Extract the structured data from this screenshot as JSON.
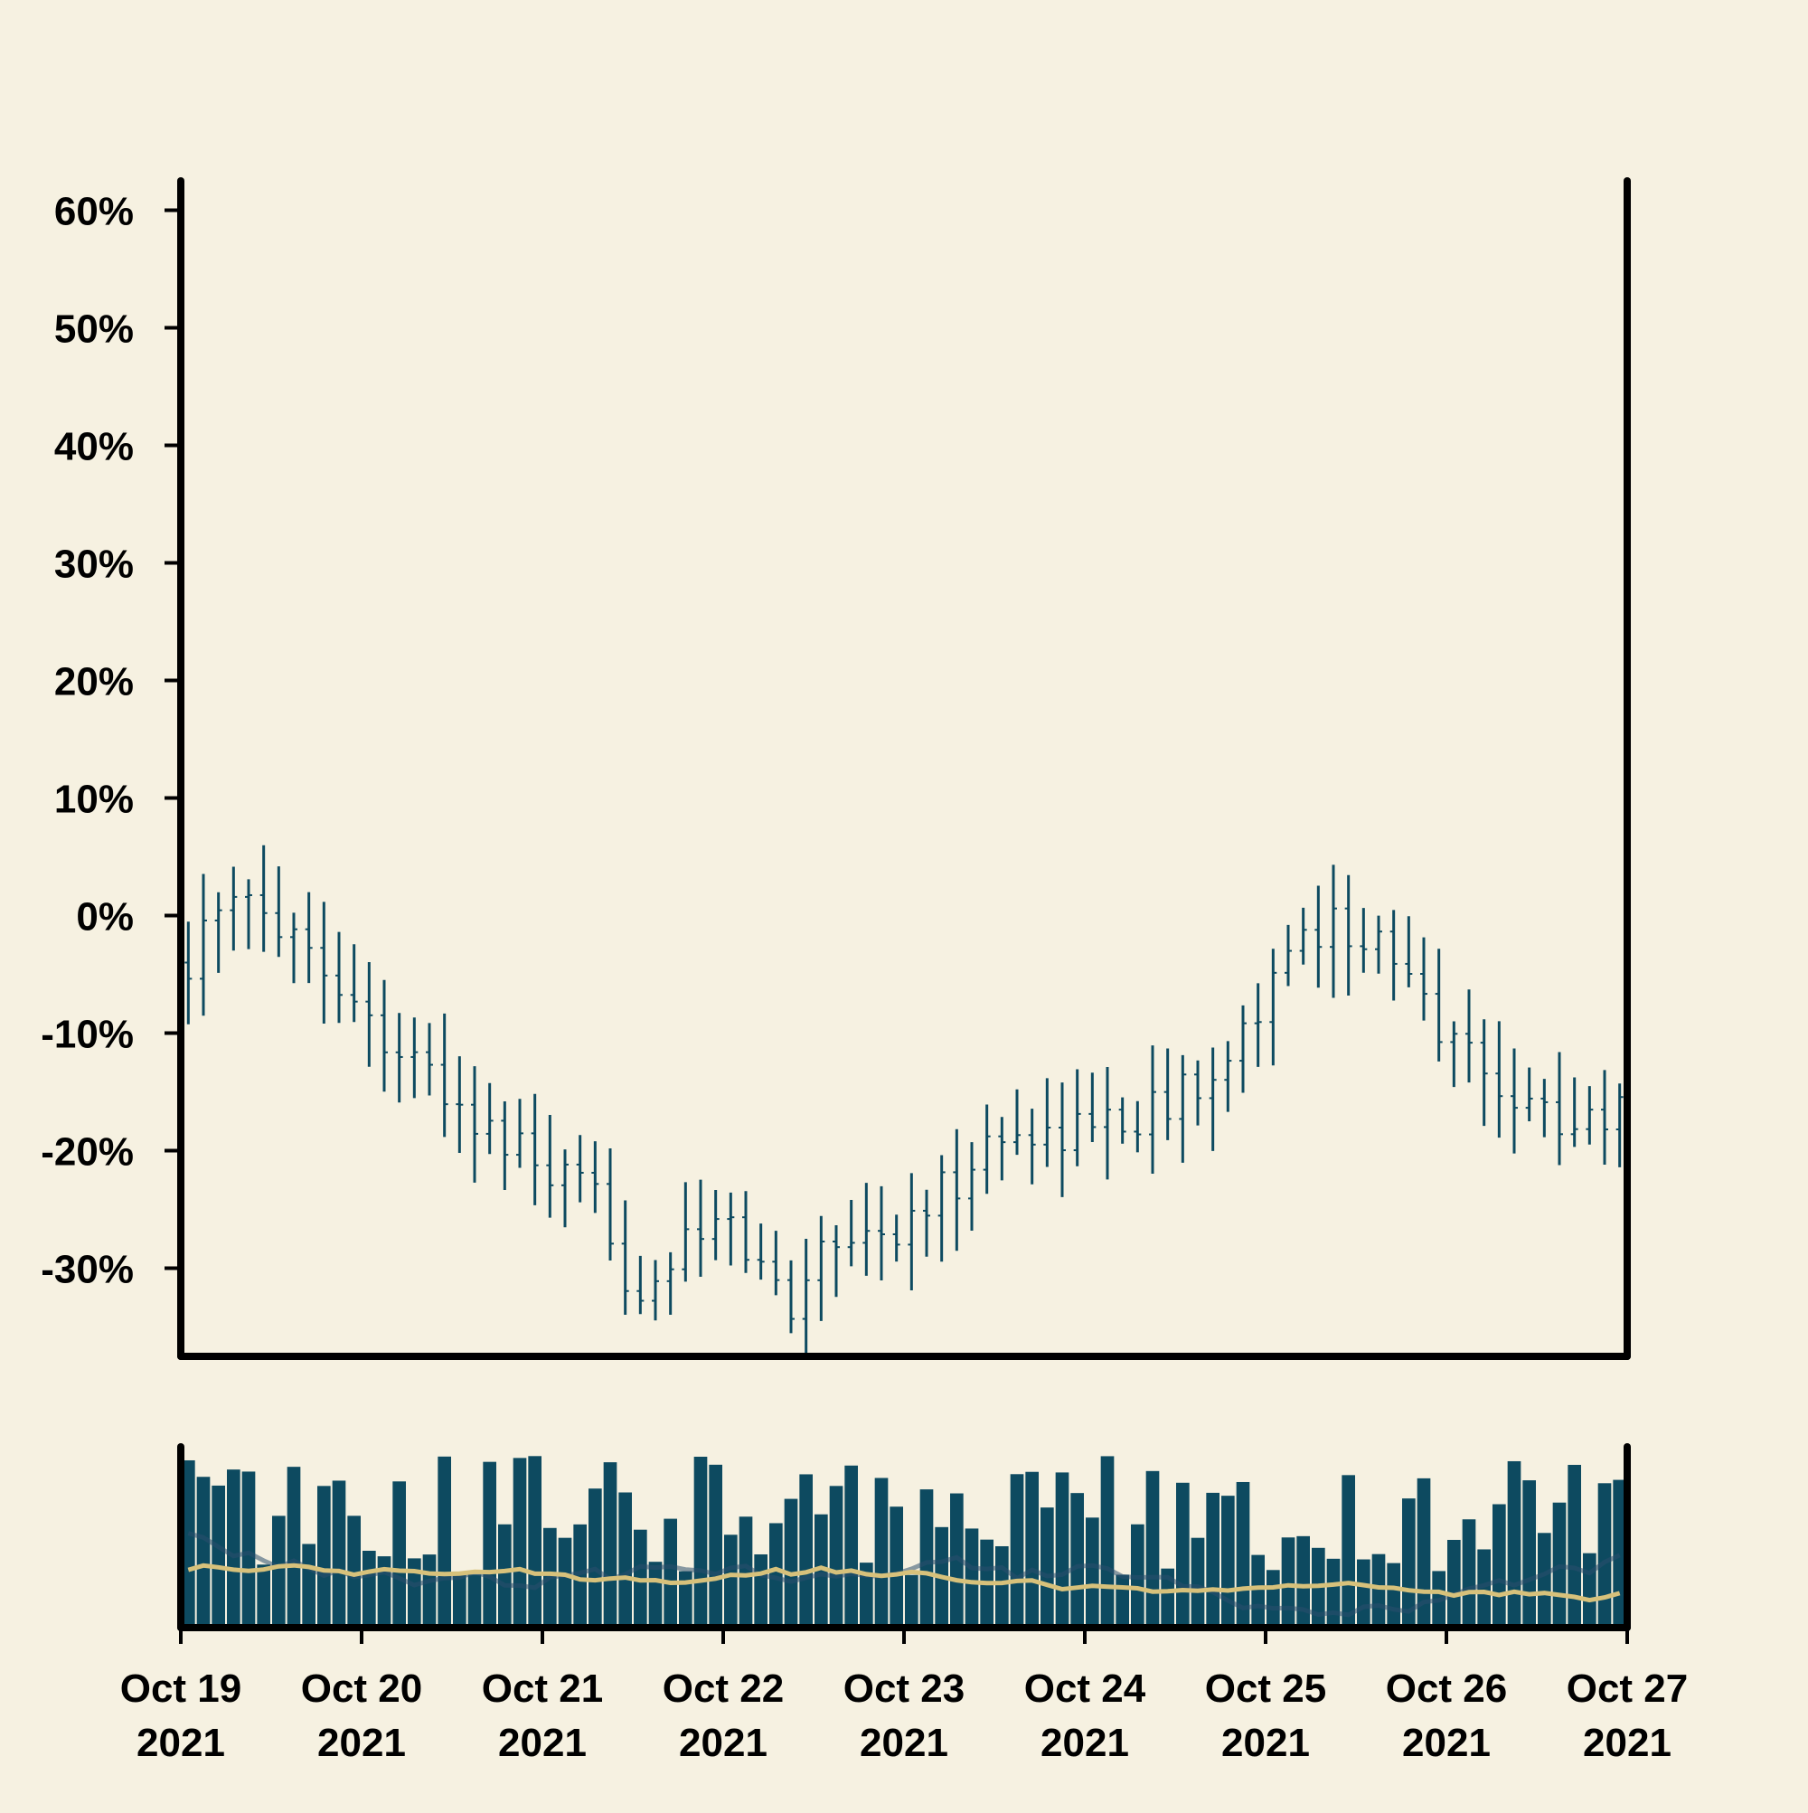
{
  "colors": {
    "background": "#f6f1e1",
    "bars": "#0d4a60",
    "ma_fast": "#2b4f6e",
    "ma_slow": "#d7c17b",
    "axis": "#000000"
  },
  "chart_data": [
    {
      "type": "ohlc",
      "name": "price-panel",
      "y_axis": {
        "ticks": [
          60,
          50,
          40,
          30,
          20,
          10,
          0,
          -10,
          -20,
          -30
        ],
        "tick_labels": [
          "60%",
          "50%",
          "40%",
          "30%",
          "20%",
          "10%",
          "0%",
          "-10%",
          "-20%",
          "-30%"
        ],
        "range": [
          -37.5,
          62.5
        ]
      },
      "x_axis": {
        "range": [
          "2021-10-19 00:00",
          "2021-10-27 00:00"
        ],
        "bar_interval_hours": 2
      },
      "anchors": [
        {
          "t": "2021-10-19 00:00",
          "v": -4
        },
        {
          "t": "2021-10-19 08:00",
          "v": 1
        },
        {
          "t": "2021-10-19 14:00",
          "v": 0
        },
        {
          "t": "2021-10-20 00:00",
          "v": -8
        },
        {
          "t": "2021-10-20 12:00",
          "v": -16
        },
        {
          "t": "2021-10-21 00:00",
          "v": -22
        },
        {
          "t": "2021-10-21 08:00",
          "v": -25
        },
        {
          "t": "2021-10-21 12:00",
          "v": -32
        },
        {
          "t": "2021-10-22 00:00",
          "v": -26
        },
        {
          "t": "2021-10-22 10:00",
          "v": -34
        },
        {
          "t": "2021-10-22 12:00",
          "v": -27
        },
        {
          "t": "2021-10-23 00:00",
          "v": -27
        },
        {
          "t": "2021-10-23 12:00",
          "v": -19
        },
        {
          "t": "2021-10-24 00:00",
          "v": -18
        },
        {
          "t": "2021-10-24 12:00",
          "v": -16
        },
        {
          "t": "2021-10-25 00:00",
          "v": -7
        },
        {
          "t": "2021-10-25 08:00",
          "v": 0
        },
        {
          "t": "2021-10-25 14:00",
          "v": -2
        },
        {
          "t": "2021-10-26 00:00",
          "v": -10
        },
        {
          "t": "2021-10-26 12:00",
          "v": -17
        },
        {
          "t": "2021-10-27 00:00",
          "v": -17
        }
      ]
    },
    {
      "type": "bar",
      "name": "volume-panel",
      "moving_averages": [
        {
          "color": "#2b4f6e"
        },
        {
          "color": "#d7c17b"
        }
      ]
    }
  ],
  "date_ticks": [
    {
      "t": "2021-10-19",
      "line1": "Oct 19",
      "line2": "2021"
    },
    {
      "t": "2021-10-20",
      "line1": "Oct 20",
      "line2": "2021"
    },
    {
      "t": "2021-10-21",
      "line1": "Oct 21",
      "line2": "2021"
    },
    {
      "t": "2021-10-22",
      "line1": "Oct 22",
      "line2": "2021"
    },
    {
      "t": "2021-10-23",
      "line1": "Oct 23",
      "line2": "2021"
    },
    {
      "t": "2021-10-24",
      "line1": "Oct 24",
      "line2": "2021"
    },
    {
      "t": "2021-10-25",
      "line1": "Oct 25",
      "line2": "2021"
    },
    {
      "t": "2021-10-26",
      "line1": "Oct 26",
      "line2": "2021"
    },
    {
      "t": "2021-10-27",
      "line1": "Oct 27",
      "line2": "2021"
    }
  ]
}
